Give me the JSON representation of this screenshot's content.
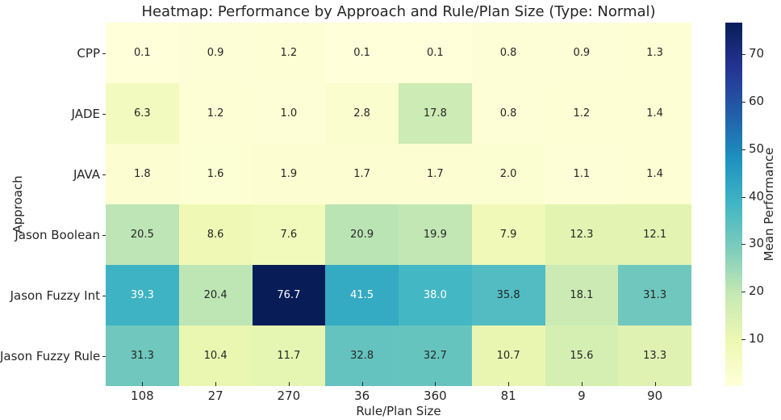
{
  "figure": {
    "background": "#ffffff",
    "text_color": "#262626"
  },
  "chart_data": {
    "type": "heatmap",
    "title": "Heatmap: Performance by Approach and Rule/Plan Size (Type: Normal)",
    "xlabel": "Rule/Plan Size",
    "ylabel": "Approach",
    "colorbar_label": "Mean Performance",
    "x_categories": [
      "108",
      "27",
      "270",
      "36",
      "360",
      "81",
      "9",
      "90"
    ],
    "y_categories": [
      "CPP",
      "JADE",
      "JAVA",
      "Jason Boolean",
      "Jason Fuzzy Int",
      "Jason Fuzzy Rule"
    ],
    "values": [
      [
        0.1,
        0.9,
        1.2,
        0.1,
        0.1,
        0.8,
        0.9,
        1.3
      ],
      [
        6.3,
        1.2,
        1.0,
        2.8,
        17.8,
        0.8,
        1.2,
        1.4
      ],
      [
        1.8,
        1.6,
        1.9,
        1.7,
        1.7,
        2.0,
        1.1,
        1.4
      ],
      [
        20.5,
        8.6,
        7.6,
        20.9,
        19.9,
        7.9,
        12.3,
        12.1
      ],
      [
        39.3,
        20.4,
        76.7,
        41.5,
        38.0,
        35.8,
        18.1,
        31.3
      ],
      [
        31.3,
        10.4,
        11.7,
        32.8,
        32.7,
        10.7,
        15.6,
        13.3
      ]
    ],
    "vmin": 0.1,
    "vmax": 76.7,
    "colormap": "YlGnBu",
    "colormap_stops": [
      "#ffffd9",
      "#edf8b1",
      "#c7e9b4",
      "#7fcdbb",
      "#41b6c4",
      "#1d91c0",
      "#225ea8",
      "#253494",
      "#081d58"
    ],
    "colorbar_ticks": [
      10,
      20,
      30,
      40,
      50,
      60,
      70
    ],
    "annotation_decimals": 1,
    "annotation_colors": {
      "dark": "#262626",
      "light": "#ffffff"
    },
    "luminance_threshold": 0.408,
    "colorbar_position": "right",
    "grid": false
  }
}
